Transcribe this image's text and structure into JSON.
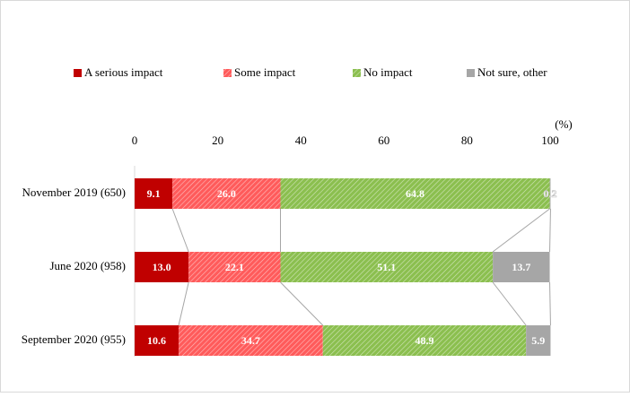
{
  "chart_data": {
    "type": "stacked-bar-horizontal",
    "unit_label": "(%)",
    "categories": [
      "November 2019 (650)",
      "June 2020 (958)",
      "September 2020 (955)"
    ],
    "series": [
      {
        "name": "A serious impact",
        "color": "#c00000",
        "hatch": false,
        "values": [
          9.1,
          13.0,
          10.6
        ],
        "value_labels": [
          "9.1",
          "13.0",
          "10.6"
        ]
      },
      {
        "name": "Some impact",
        "color": "#ff5b5b",
        "hatch": true,
        "values": [
          26.0,
          22.1,
          34.7
        ],
        "value_labels": [
          "26.0",
          "22.1",
          "34.7"
        ]
      },
      {
        "name": "No impact",
        "color": "#8bbf4f",
        "hatch": true,
        "values": [
          64.8,
          51.1,
          48.9
        ],
        "value_labels": [
          "64.8",
          "51.1",
          "48.9"
        ]
      },
      {
        "name": "Not sure, other",
        "color": "#a6a6a6",
        "hatch": false,
        "values": [
          0.2,
          13.7,
          5.9
        ],
        "value_labels": [
          "0.2",
          "13.7",
          "5.9"
        ]
      }
    ],
    "xlim": [
      0,
      100
    ],
    "xticks": [
      0,
      20,
      40,
      60,
      80,
      100
    ],
    "connector_lines": true
  }
}
